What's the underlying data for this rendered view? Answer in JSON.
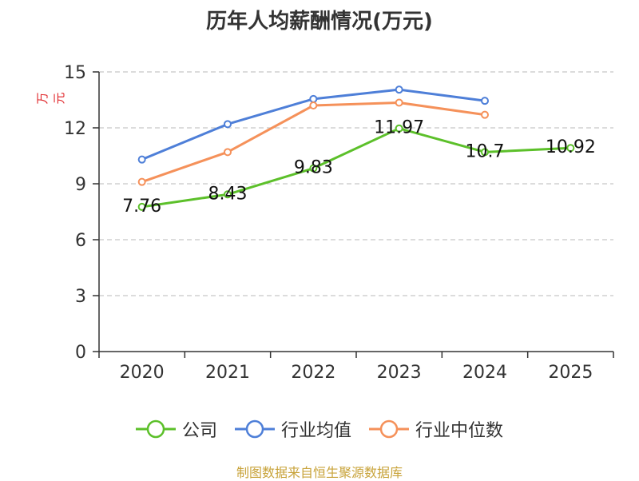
{
  "chart_data": {
    "type": "line",
    "title": "历年人均薪酬情况(万元)",
    "ylabel": "万元",
    "xlabel": "",
    "categories": [
      "2020",
      "2021",
      "2022",
      "2023",
      "2024",
      "2025"
    ],
    "ylim": [
      0,
      15
    ],
    "yticks": [
      0,
      3,
      6,
      9,
      12,
      15
    ],
    "grid": true,
    "legend_position": "bottom",
    "series": [
      {
        "name": "公司",
        "color": "#5cc02a",
        "values": [
          7.76,
          8.43,
          9.83,
          11.97,
          10.7,
          10.92
        ],
        "labels": [
          "7.76",
          "8.43",
          "9.83",
          "11.97",
          "10.7",
          "10.92"
        ]
      },
      {
        "name": "行业均值",
        "color": "#4e7fd8",
        "values": [
          10.3,
          12.2,
          13.55,
          14.05,
          13.45,
          null
        ]
      },
      {
        "name": "行业中位数",
        "color": "#f5915a",
        "values": [
          9.1,
          10.7,
          13.2,
          13.35,
          12.7,
          null
        ]
      }
    ]
  },
  "source_text": "制图数据来自恒生聚源数据库"
}
